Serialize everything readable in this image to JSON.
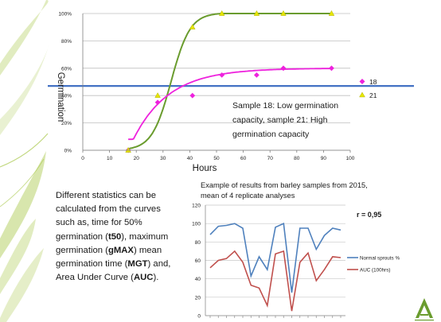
{
  "top_chart": {
    "ylabel": "Germination",
    "xlabel": "Hours",
    "annotation_lines": [
      "Sample 18: Low germination",
      "capacity, sample 21: High",
      "germination capacity"
    ]
  },
  "description": {
    "p1": "Different statistics can be calculated from the curves such as, time for 50% germination (",
    "t50": "t50",
    "p2": "), maximum germination (",
    "gmax": "gMAX",
    "p3": ")  mean germination time (",
    "mgt": "MGT",
    "p4": ") and, Area Under Curve (",
    "auc": "AUC",
    "p5": ")."
  },
  "bottom_chart": {
    "title_line1": "Example of results from barley samples from 2015,",
    "title_line2": "mean of 4 replicate analyses",
    "annotation": "r = 0,95"
  },
  "colors": {
    "green_curve": "#6a9c2e",
    "magenta_curve": "#ee22dd",
    "hline": "#4472c4",
    "blue_series": "#4f81bd",
    "red_series": "#c0504d",
    "yellow_marker": "#e6e600",
    "leaf": "#a8c84a"
  },
  "chart_data": [
    {
      "type": "scatter",
      "xlabel": "Hours",
      "ylabel": "Germination",
      "xlim": [
        0,
        100
      ],
      "ylim": [
        0,
        100
      ],
      "x_ticks": [
        0,
        10,
        20,
        30,
        40,
        50,
        60,
        70,
        80,
        90,
        100
      ],
      "y_ticks": [
        "0%",
        "20%",
        "40%",
        "60%",
        "80%",
        "100%"
      ],
      "horizontal_line": 47,
      "series": [
        {
          "name": "18",
          "marker": "diamond",
          "color": "#ee22dd",
          "x": [
            17,
            28,
            41,
            52,
            65,
            75,
            93
          ],
          "y": [
            0,
            35,
            40,
            55,
            55,
            60,
            60
          ]
        },
        {
          "name": "21",
          "marker": "triangle",
          "color": "#e6e600",
          "x": [
            17,
            28,
            41,
            52,
            65,
            75,
            93
          ],
          "y": [
            0,
            40,
            90,
            100,
            100,
            100,
            100
          ]
        }
      ],
      "fitted_curves": [
        {
          "series": "18",
          "color": "#ee22dd"
        },
        {
          "series": "21",
          "color": "#6a9c2e"
        }
      ],
      "legend": [
        "18",
        "21"
      ],
      "legend_position": "right"
    },
    {
      "type": "line",
      "title": "Example of results from barley samples from 2015, mean of 4 replicate analyses",
      "ylim": [
        0,
        120
      ],
      "y_ticks": [
        0,
        20,
        40,
        60,
        80,
        100,
        120
      ],
      "series": [
        {
          "name": "Normal sprouts %",
          "color": "#4f81bd",
          "values": [
            88,
            97,
            98,
            100,
            95,
            43,
            64,
            50,
            96,
            100,
            25,
            95,
            95,
            72,
            87,
            95,
            93
          ]
        },
        {
          "name": "AUC (100hrs)",
          "color": "#c0504d",
          "values": [
            52,
            60,
            62,
            70,
            58,
            33,
            30,
            11,
            67,
            70,
            5,
            58,
            68,
            38,
            50,
            64,
            63
          ]
        }
      ],
      "legend_position": "right",
      "annotation": "r = 0,95"
    }
  ]
}
